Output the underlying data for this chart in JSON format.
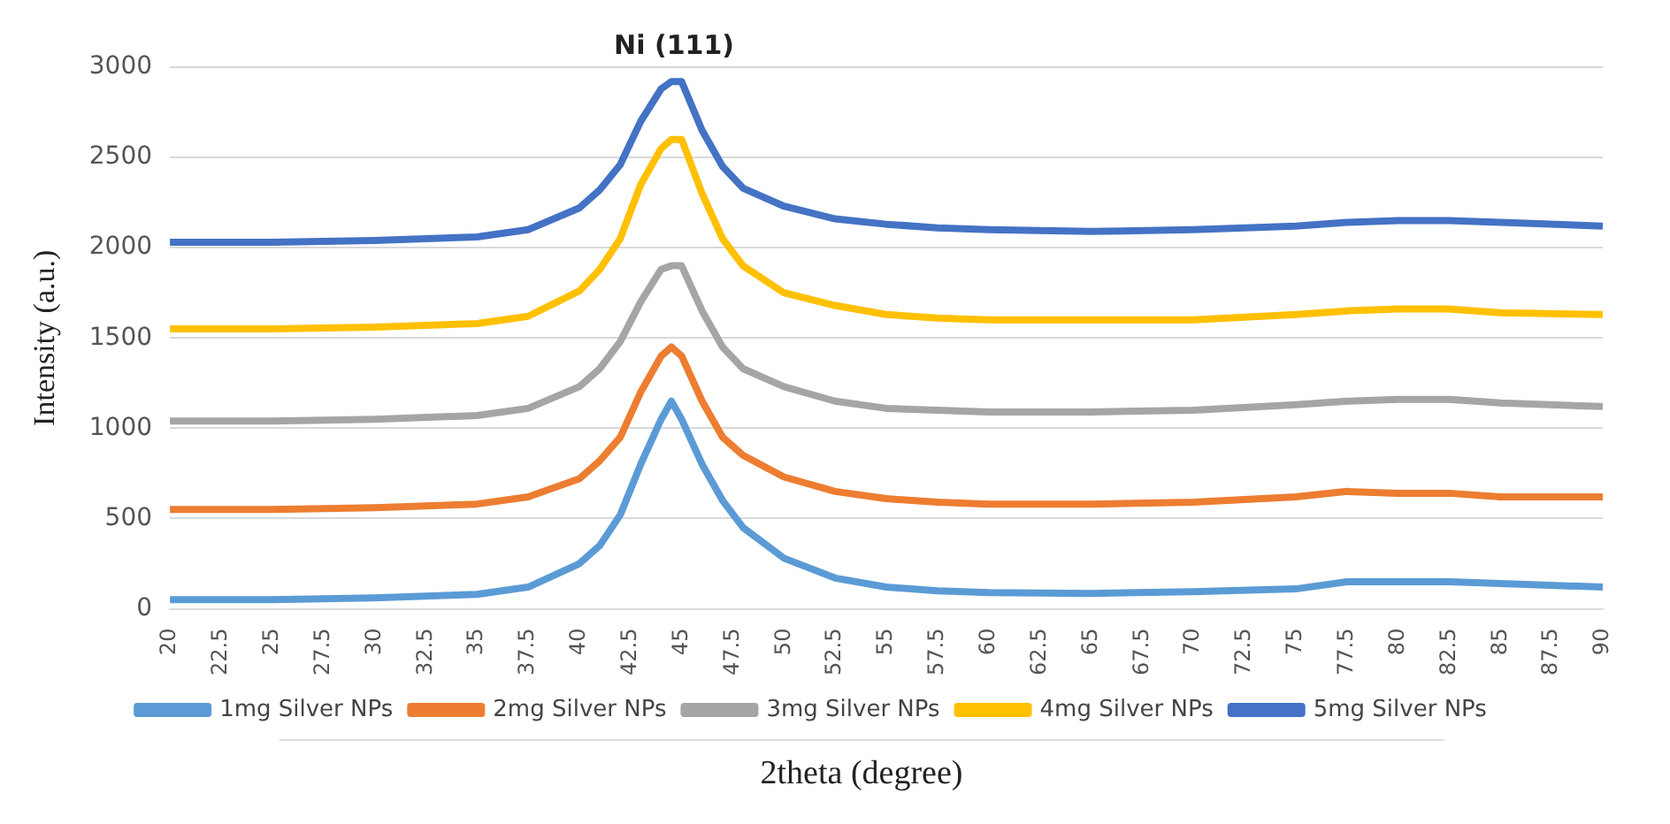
{
  "chart_data": {
    "type": "line",
    "xlabel": "2theta (degree)",
    "ylabel": "Intensity (a.u.)",
    "annotations": [
      "Ni (111)"
    ],
    "x": [
      20,
      25,
      30,
      35,
      37.5,
      40,
      41,
      42,
      43,
      44,
      44.5,
      45,
      46,
      47,
      48,
      50,
      52.5,
      55,
      57.5,
      60,
      65,
      70,
      75,
      77.5,
      80,
      82.5,
      85,
      90
    ],
    "series": [
      {
        "name": "1mg Silver NPs",
        "color": "#5b9bd5",
        "values": [
          50,
          50,
          60,
          80,
          120,
          250,
          350,
          520,
          800,
          1050,
          1150,
          1050,
          800,
          600,
          450,
          280,
          170,
          120,
          100,
          90,
          85,
          95,
          110,
          150,
          150,
          150,
          140,
          120
        ]
      },
      {
        "name": "2mg Silver NPs",
        "color": "#ed7d31",
        "values": [
          550,
          550,
          560,
          580,
          620,
          720,
          820,
          950,
          1200,
          1400,
          1450,
          1400,
          1150,
          950,
          850,
          730,
          650,
          610,
          590,
          580,
          580,
          590,
          620,
          650,
          640,
          640,
          620,
          620
        ]
      },
      {
        "name": "3mg Silver NPs",
        "color": "#a5a5a5",
        "values": [
          1040,
          1040,
          1050,
          1070,
          1110,
          1230,
          1330,
          1480,
          1700,
          1880,
          1900,
          1900,
          1650,
          1450,
          1330,
          1230,
          1150,
          1110,
          1100,
          1090,
          1090,
          1100,
          1130,
          1150,
          1160,
          1160,
          1140,
          1120
        ]
      },
      {
        "name": "4mg Silver NPs",
        "color": "#ffc000",
        "values": [
          1550,
          1550,
          1560,
          1580,
          1620,
          1760,
          1880,
          2050,
          2350,
          2550,
          2600,
          2600,
          2300,
          2050,
          1900,
          1750,
          1680,
          1630,
          1610,
          1600,
          1600,
          1600,
          1630,
          1650,
          1660,
          1660,
          1640,
          1630
        ]
      },
      {
        "name": "5mg Silver NPs",
        "color": "#4472c4",
        "values": [
          2030,
          2030,
          2040,
          2060,
          2100,
          2220,
          2320,
          2460,
          2700,
          2880,
          2920,
          2920,
          2650,
          2450,
          2330,
          2230,
          2160,
          2130,
          2110,
          2100,
          2090,
          2100,
          2120,
          2140,
          2150,
          2150,
          2140,
          2120
        ]
      }
    ],
    "xlim": [
      20,
      90
    ],
    "xticks": [
      20,
      22.5,
      25,
      27.5,
      30,
      32.5,
      35,
      37.5,
      40,
      42.5,
      45,
      47.5,
      50,
      52.5,
      55,
      57.5,
      60,
      62.5,
      65,
      67.5,
      70,
      72.5,
      75,
      77.5,
      80,
      82.5,
      85,
      87.5,
      90
    ],
    "ylim": [
      0,
      3000
    ],
    "yticks": [
      0,
      500,
      1000,
      1500,
      2000,
      2500,
      3000
    ],
    "grid": "y",
    "legend": "bottom",
    "marker": "none",
    "line_style": "solid"
  }
}
